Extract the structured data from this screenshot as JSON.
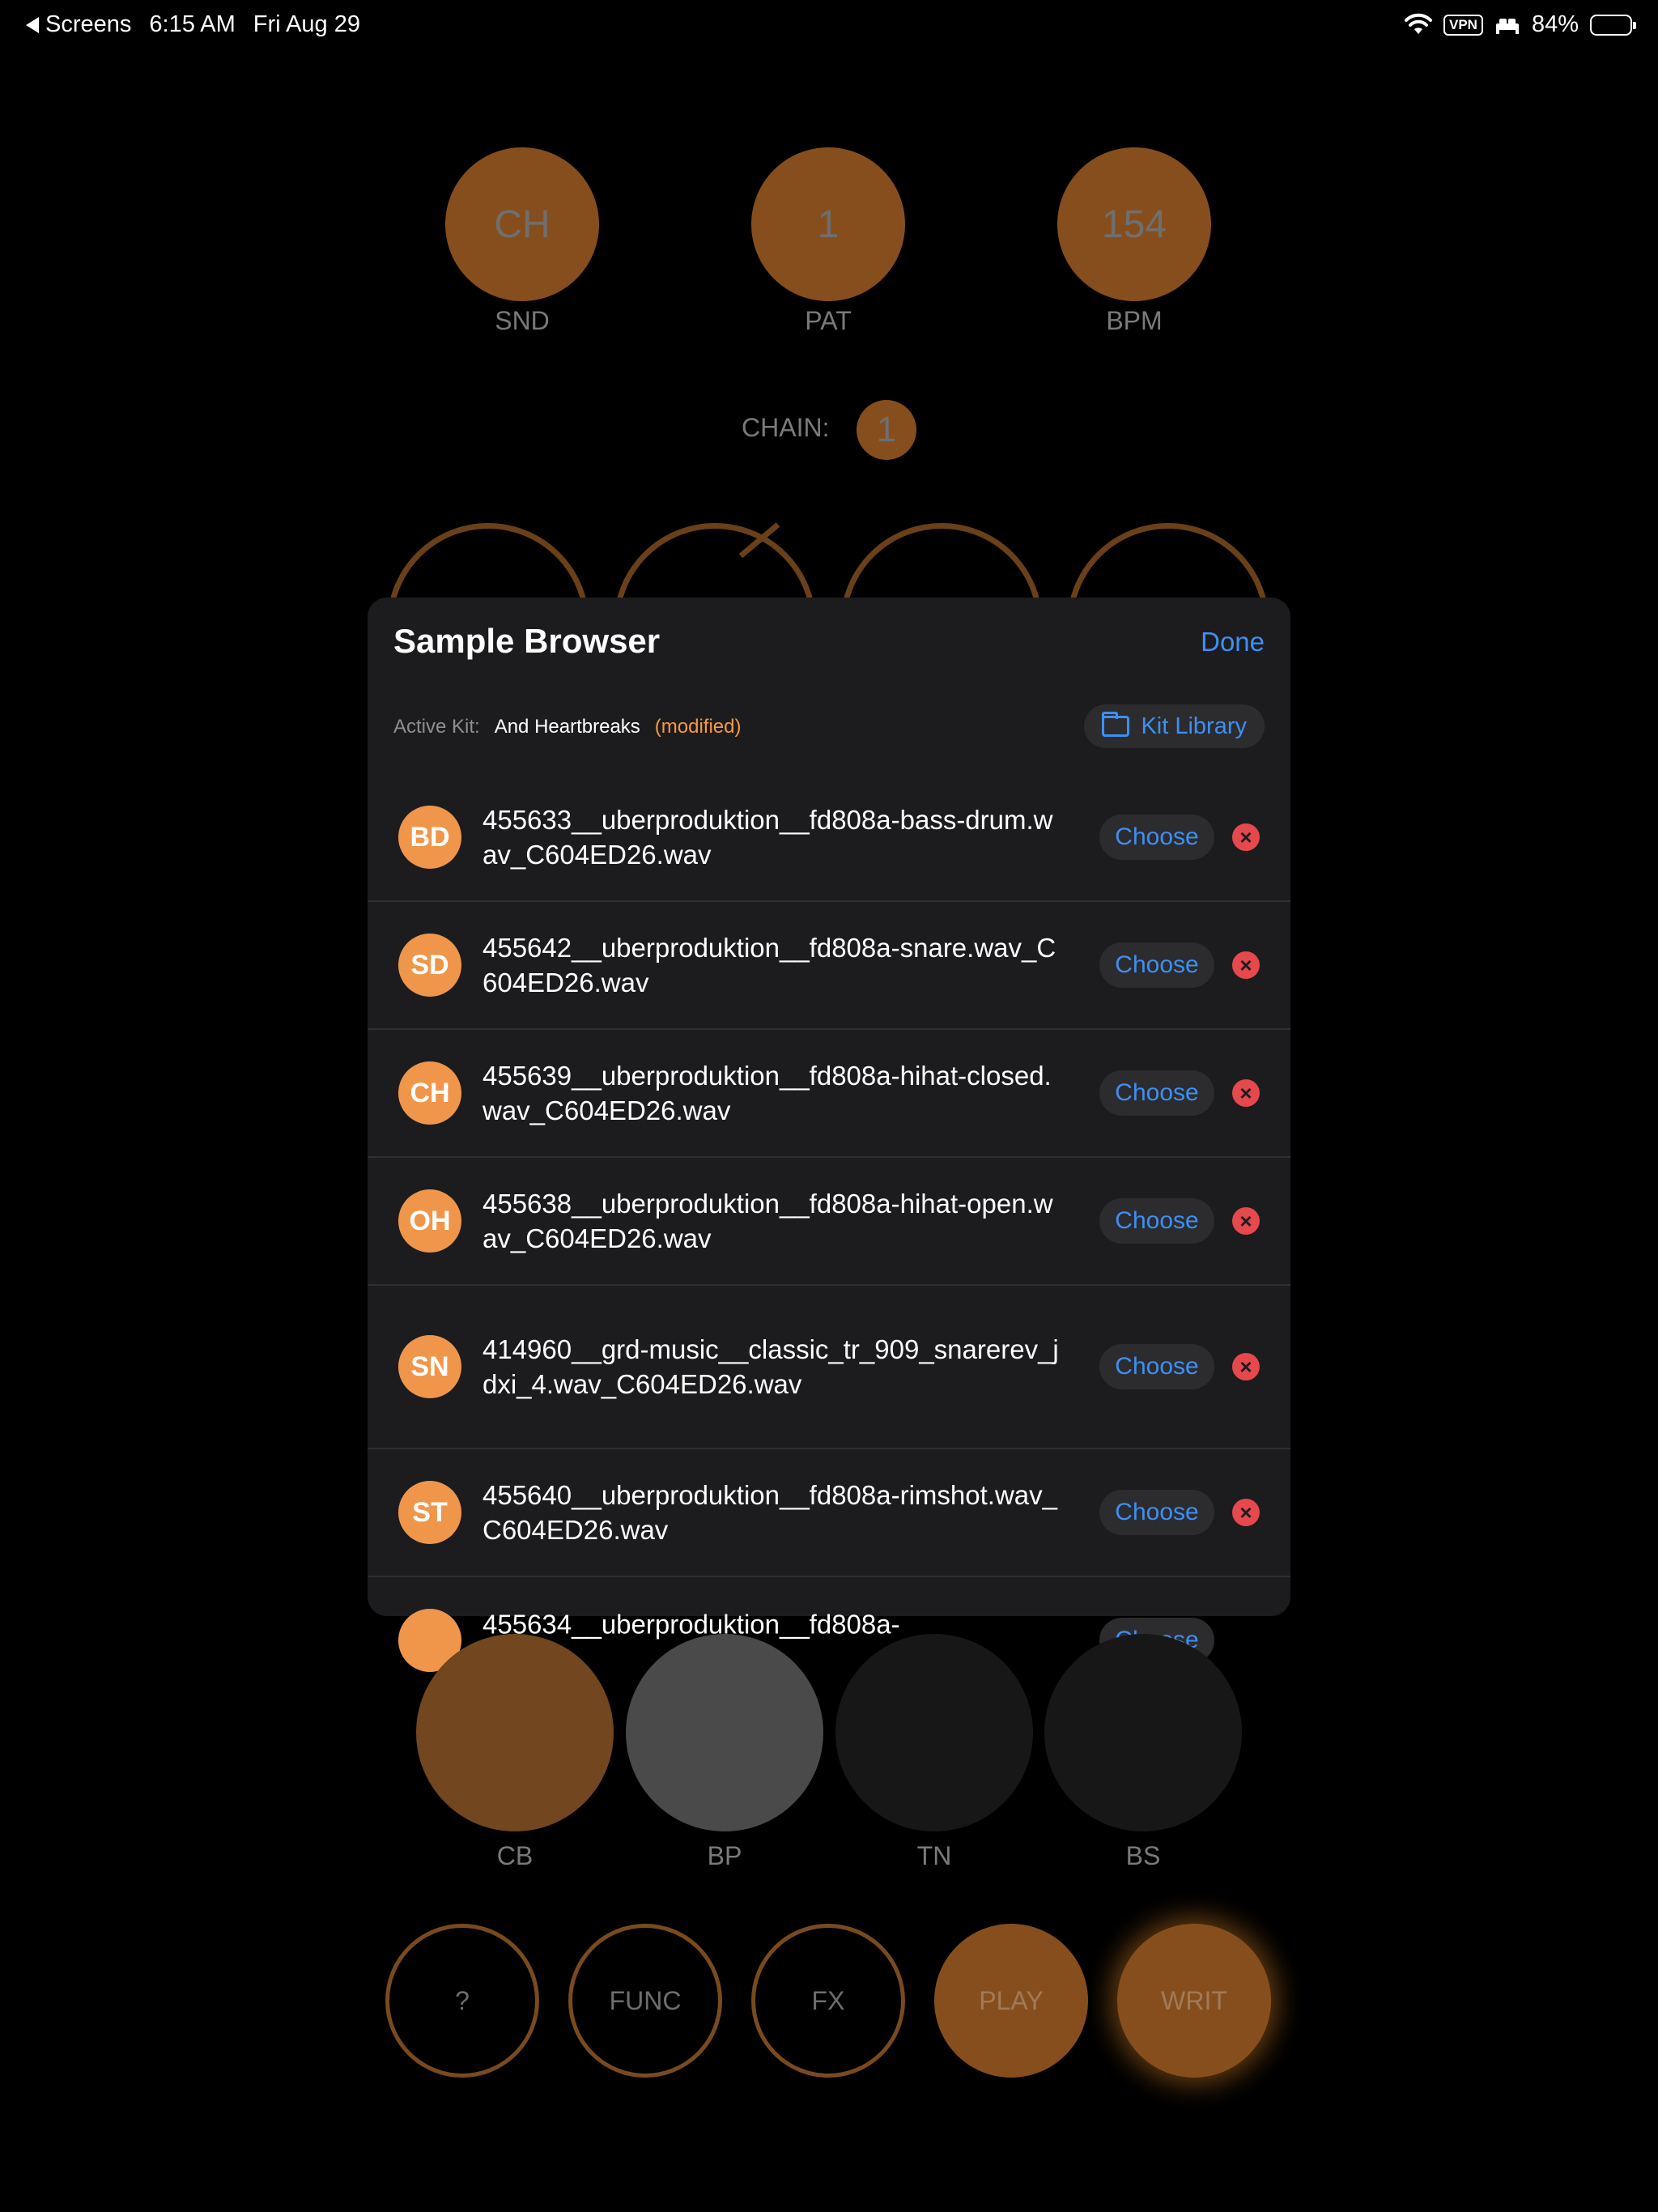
{
  "status_bar": {
    "back_label": "Screens",
    "time": "6:15 AM",
    "date": "Fri Aug 29",
    "vpn": "VPN",
    "battery": "84%",
    "battery_level": 0.84
  },
  "top_knobs": [
    {
      "value": "CH",
      "label": "SND"
    },
    {
      "value": "1",
      "label": "PAT"
    },
    {
      "value": "154",
      "label": "BPM"
    }
  ],
  "chain": {
    "label": "CHAIN:",
    "value": "1"
  },
  "modal": {
    "title": "Sample Browser",
    "done_label": "Done",
    "active_kit_label": "Active Kit:",
    "kit_name": "And Heartbreaks",
    "kit_status": "(modified)",
    "kit_library_label": "Kit Library",
    "choose_label": "Choose",
    "samples": [
      {
        "abbr": "BD",
        "file": "455633__uberproduktion__fd808a-bass-drum.wav_C604ED26.wav"
      },
      {
        "abbr": "SD",
        "file": "455642__uberproduktion__fd808a-snare.wav_C604ED26.wav"
      },
      {
        "abbr": "CH",
        "file": "455639__uberproduktion__fd808a-hihat-closed.wav_C604ED26.wav"
      },
      {
        "abbr": "OH",
        "file": "455638__uberproduktion__fd808a-hihat-open.wav_C604ED26.wav"
      },
      {
        "abbr": "SN",
        "file": "414960__grd-music__classic_tr_909_snarerev_jdxi_4.wav_C604ED26.wav"
      },
      {
        "abbr": "ST",
        "file": "455640__uberproduktion__fd808a-rimshot.wav_C604ED26.wav"
      },
      {
        "abbr": "",
        "file": "455634__uberproduktion__fd808a-"
      }
    ]
  },
  "pads": [
    {
      "label": "CB",
      "color": "#72461e"
    },
    {
      "label": "BP",
      "color": "#4a4a4a"
    },
    {
      "label": "TN",
      "color": "#171717"
    },
    {
      "label": "BS",
      "color": "#171717"
    }
  ],
  "controls": [
    {
      "label": "?",
      "style": "outline"
    },
    {
      "label": "FUNC",
      "style": "outline"
    },
    {
      "label": "FX",
      "style": "outline"
    },
    {
      "label": "PLAY",
      "style": "filled"
    },
    {
      "label": "WRIT",
      "style": "filled-glow"
    }
  ]
}
